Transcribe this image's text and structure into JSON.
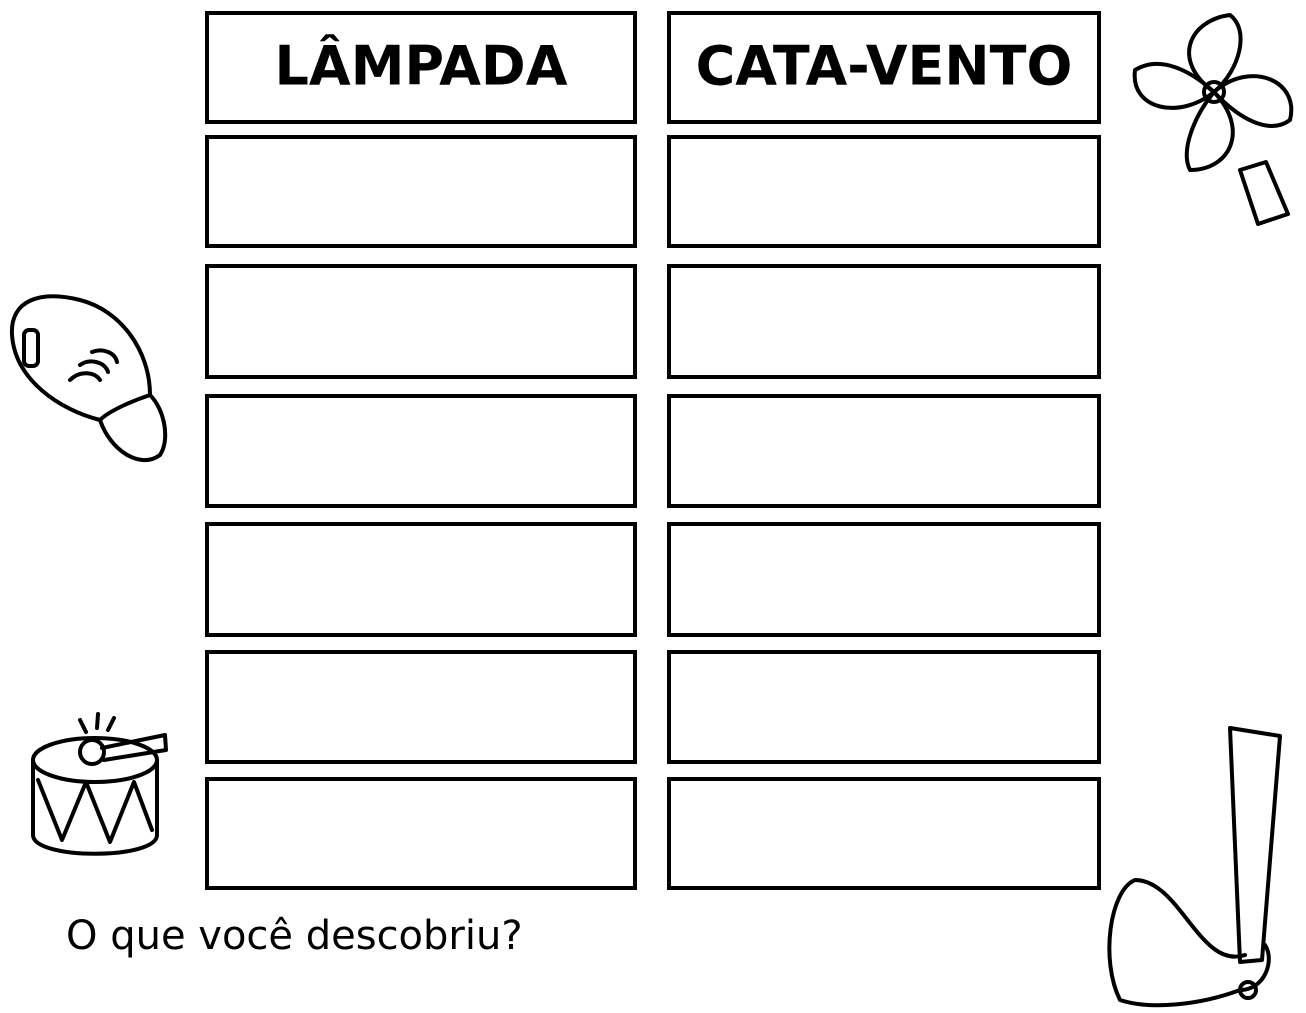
{
  "table": {
    "headers": [
      "LÂMPADA",
      "CATA-VENTO"
    ]
  },
  "question": "O que você descobriu?"
}
